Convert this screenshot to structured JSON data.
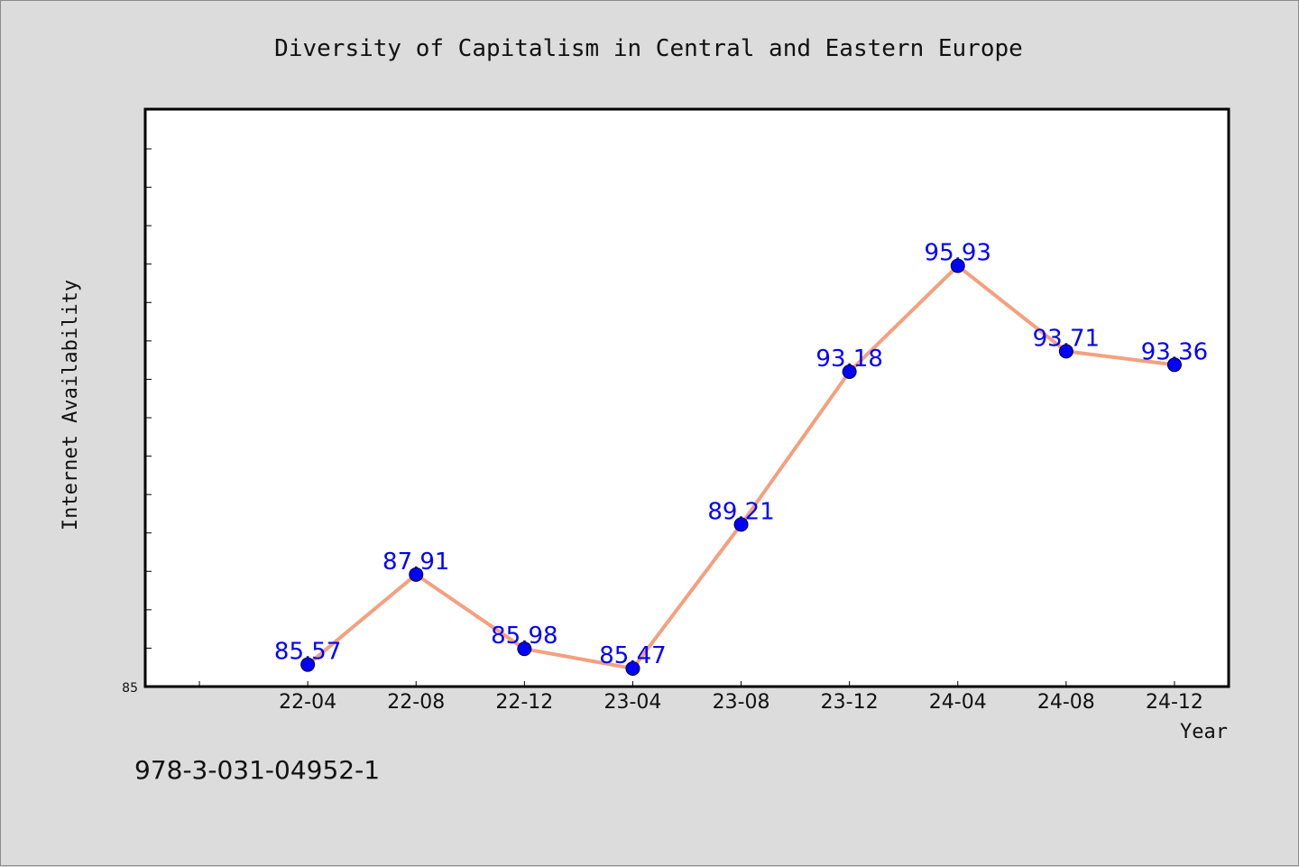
{
  "colors": {
    "background": "#dcdcdc",
    "plot_background": "#ffffff",
    "line": "#f4a07e",
    "marker": "#0000ff",
    "data_label": "#0000ff",
    "text": "#111111"
  },
  "footer": {
    "code": "978-3-031-04952-1"
  },
  "chart_data": {
    "type": "line",
    "title": "Diversity of Capitalism in Central and Eastern Europe",
    "xlabel": "Year",
    "ylabel": "Internet Availability",
    "categories": [
      "22-04",
      "22-08",
      "22-12",
      "23-04",
      "23-08",
      "23-12",
      "24-04",
      "24-08",
      "24-12"
    ],
    "series": [
      {
        "values": [
          85.57,
          87.91,
          85.98,
          85.47,
          89.21,
          93.18,
          95.93,
          93.71,
          93.36
        ]
      }
    ],
    "data_labels": [
      "85.57",
      "87.91",
      "85.98",
      "85.47",
      "89.21",
      "93.18",
      "95.93",
      "93.71",
      "93.36"
    ],
    "y_tick_labels": [
      "85"
    ],
    "ylim": [
      85,
      100
    ],
    "grid": false,
    "legend": "none"
  }
}
